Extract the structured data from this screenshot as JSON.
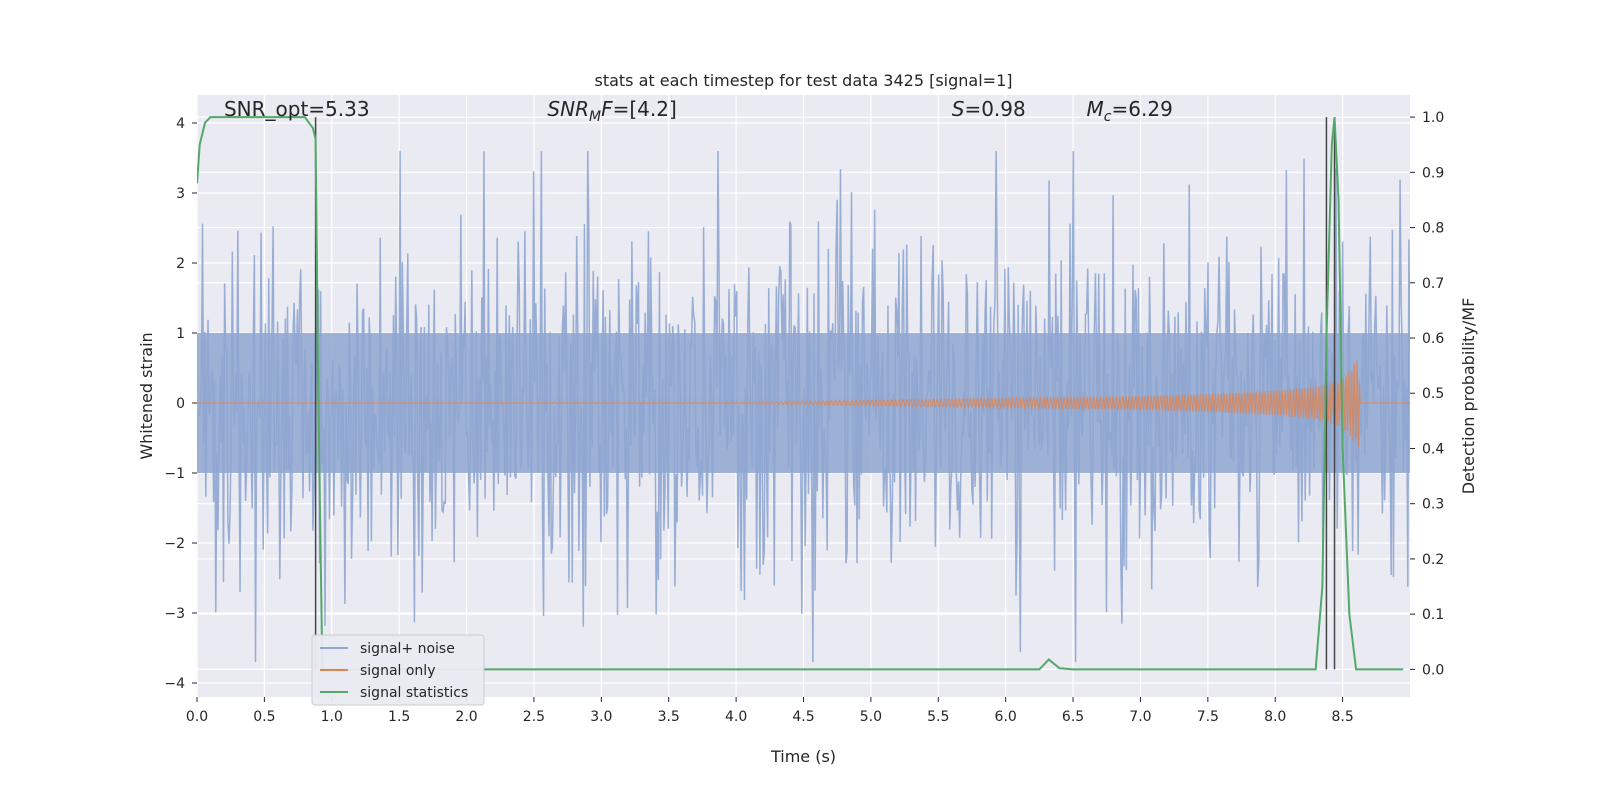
{
  "chart_data": {
    "type": "line",
    "title": "stats at each timestep for test data 3425 [signal=1]",
    "xlabel": "Time (s)",
    "ylabel_left": "Whitened strain",
    "ylabel_right": "Detection probability/MF",
    "xlim": [
      0,
      9.0
    ],
    "ylim_left": [
      -4.2,
      4.4
    ],
    "ylim_right": [
      -0.05,
      1.04
    ],
    "x_ticks": [
      0.0,
      0.5,
      1.0,
      1.5,
      2.0,
      2.5,
      3.0,
      3.5,
      4.0,
      4.5,
      5.0,
      5.5,
      6.0,
      6.5,
      7.0,
      7.5,
      8.0,
      8.5
    ],
    "x_tick_labels": [
      "0.0",
      "0.5",
      "1.0",
      "1.5",
      "2.0",
      "2.5",
      "3.0",
      "3.5",
      "4.0",
      "4.5",
      "5.0",
      "5.5",
      "6.0",
      "6.5",
      "7.0",
      "7.5",
      "8.0",
      "8.5"
    ],
    "y_left_ticks": [
      -4,
      -3,
      -2,
      -1,
      0,
      1,
      2,
      3,
      4
    ],
    "y_left_tick_labels": [
      "−4",
      "−3",
      "−2",
      "−1",
      "0",
      "1",
      "2",
      "3",
      "4"
    ],
    "y_right_ticks": [
      0.0,
      0.1,
      0.2,
      0.3,
      0.4,
      0.5,
      0.6,
      0.7,
      0.8,
      0.9,
      1.0
    ],
    "y_right_tick_labels": [
      "0.0",
      "0.1",
      "0.2",
      "0.3",
      "0.4",
      "0.5",
      "0.6",
      "0.7",
      "0.8",
      "0.9",
      "1.0"
    ],
    "grid": true,
    "background": "#eaeaf2",
    "annotations": [
      {
        "text": "SNR_opt=5.33",
        "x": 0.2,
        "y": 4.1,
        "italic": false
      },
      {
        "text": "SNR",
        "sub": "M",
        "suffix": "F=[4.2]",
        "x": 2.6,
        "y": 4.1,
        "italic": true
      },
      {
        "text": "S",
        "suffix": "=0.98",
        "x": 5.6,
        "y": 4.1,
        "italic": true
      },
      {
        "text": "M",
        "sub": "c",
        "suffix": "=6.29",
        "x": 6.6,
        "y": 4.1,
        "italic": true
      }
    ],
    "vertical_lines": [
      0.88,
      8.38,
      8.44
    ],
    "series": [
      {
        "name": "signal+ noise",
        "color": "#8fa6d0",
        "axis": "left",
        "type": "noise",
        "x_range": [
          0,
          9.0
        ],
        "sample_count": 1100,
        "typical_amplitude": [
          -2.6,
          2.6
        ],
        "peak_amplitude": [
          -3.7,
          3.6
        ]
      },
      {
        "name": "signal only",
        "color": "#dd8452",
        "axis": "left",
        "type": "chirp",
        "envelope_x": [
          0.0,
          4.0,
          5.0,
          6.0,
          7.0,
          7.5,
          8.0,
          8.3,
          8.5,
          8.62,
          8.63,
          9.0
        ],
        "envelope_y": [
          0.0,
          0.01,
          0.04,
          0.07,
          0.1,
          0.13,
          0.18,
          0.24,
          0.35,
          0.65,
          0.0,
          0.0
        ]
      },
      {
        "name": "signal statistics",
        "color": "#55a868",
        "axis": "right",
        "x": [
          0.0,
          0.02,
          0.06,
          0.1,
          0.8,
          0.86,
          0.88,
          0.9,
          0.93,
          1.0,
          6.25,
          6.32,
          6.4,
          6.5,
          8.3,
          8.35,
          8.38,
          8.42,
          8.44,
          8.47,
          8.5,
          8.55,
          8.6,
          8.95
        ],
        "y": [
          0.88,
          0.95,
          0.99,
          1.0,
          1.0,
          0.98,
          0.96,
          0.5,
          0.0,
          0.0,
          0.0,
          0.018,
          0.002,
          0.0,
          0.0,
          0.15,
          0.6,
          0.95,
          1.0,
          0.85,
          0.4,
          0.1,
          0.0,
          0.0
        ]
      }
    ],
    "legend": {
      "position": "lower-left",
      "items": [
        "signal+ noise",
        "signal only",
        "signal statistics"
      ]
    }
  }
}
